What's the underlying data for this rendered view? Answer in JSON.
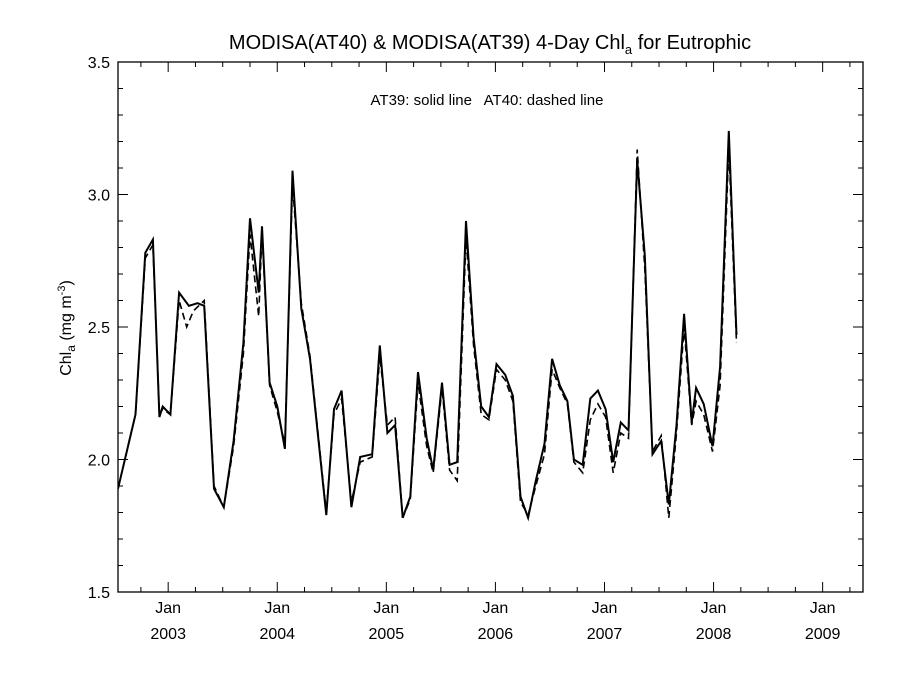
{
  "chart_data": {
    "type": "line",
    "title": {
      "main": "MODISA(AT40) & MODISA(AT39) 4-Day Chl",
      "sub": "a",
      "tail": " for Eutrophic"
    },
    "ylabel": {
      "main": "Chl",
      "sub": "a",
      "unit": " (mg m",
      "sup": "-3",
      "close": ")"
    },
    "annotation": "AT39: solid line   AT40: dashed line",
    "xlim": [
      2002.54,
      2009.37
    ],
    "ylim": [
      1.5,
      3.5
    ],
    "yticks": [
      "1.5",
      "2.0",
      "2.5",
      "3.0",
      "3.5"
    ],
    "xticks": [
      {
        "x": 2003.0,
        "month": "Jan",
        "year": "2003"
      },
      {
        "x": 2004.0,
        "month": "Jan",
        "year": "2004"
      },
      {
        "x": 2005.0,
        "month": "Jan",
        "year": "2005"
      },
      {
        "x": 2006.0,
        "month": "Jan",
        "year": "2006"
      },
      {
        "x": 2007.0,
        "month": "Jan",
        "year": "2007"
      },
      {
        "x": 2008.0,
        "month": "Jan",
        "year": "2008"
      },
      {
        "x": 2009.0,
        "month": "Jan",
        "year": "2009"
      }
    ],
    "series": [
      {
        "name": "AT39",
        "style": "solid",
        "color": "#000000",
        "points": [
          [
            2002.54,
            1.89
          ],
          [
            2002.7,
            2.17
          ],
          [
            2002.79,
            2.78
          ],
          [
            2002.86,
            2.83
          ],
          [
            2002.92,
            2.16
          ],
          [
            2002.95,
            2.2
          ],
          [
            2003.02,
            2.17
          ],
          [
            2003.1,
            2.63
          ],
          [
            2003.19,
            2.58
          ],
          [
            2003.27,
            2.59
          ],
          [
            2003.33,
            2.58
          ],
          [
            2003.42,
            1.89
          ],
          [
            2003.51,
            1.82
          ],
          [
            2003.6,
            2.07
          ],
          [
            2003.69,
            2.44
          ],
          [
            2003.75,
            2.91
          ],
          [
            2003.83,
            2.63
          ],
          [
            2003.86,
            2.88
          ],
          [
            2003.93,
            2.29
          ],
          [
            2004.0,
            2.2
          ],
          [
            2004.07,
            2.04
          ],
          [
            2004.14,
            3.09
          ],
          [
            2004.22,
            2.57
          ],
          [
            2004.3,
            2.38
          ],
          [
            2004.45,
            1.79
          ],
          [
            2004.52,
            2.19
          ],
          [
            2004.59,
            2.26
          ],
          [
            2004.68,
            1.82
          ],
          [
            2004.76,
            2.01
          ],
          [
            2004.87,
            2.02
          ],
          [
            2004.94,
            2.43
          ],
          [
            2005.01,
            2.1
          ],
          [
            2005.08,
            2.13
          ],
          [
            2005.15,
            1.78
          ],
          [
            2005.22,
            1.86
          ],
          [
            2005.29,
            2.33
          ],
          [
            2005.37,
            2.08
          ],
          [
            2005.43,
            1.96
          ],
          [
            2005.51,
            2.29
          ],
          [
            2005.58,
            1.98
          ],
          [
            2005.65,
            1.99
          ],
          [
            2005.73,
            2.9
          ],
          [
            2005.8,
            2.46
          ],
          [
            2005.87,
            2.2
          ],
          [
            2005.94,
            2.16
          ],
          [
            2006.01,
            2.36
          ],
          [
            2006.09,
            2.32
          ],
          [
            2006.16,
            2.24
          ],
          [
            2006.23,
            1.86
          ],
          [
            2006.3,
            1.78
          ],
          [
            2006.37,
            1.92
          ],
          [
            2006.45,
            2.06
          ],
          [
            2006.52,
            2.38
          ],
          [
            2006.59,
            2.28
          ],
          [
            2006.66,
            2.22
          ],
          [
            2006.72,
            2.0
          ],
          [
            2006.8,
            1.98
          ],
          [
            2006.87,
            2.23
          ],
          [
            2006.94,
            2.26
          ],
          [
            2007.01,
            2.19
          ],
          [
            2007.08,
            1.99
          ],
          [
            2007.15,
            2.14
          ],
          [
            2007.22,
            2.11
          ],
          [
            2007.3,
            3.13
          ],
          [
            2007.37,
            2.77
          ],
          [
            2007.44,
            2.02
          ],
          [
            2007.52,
            2.07
          ],
          [
            2007.59,
            1.83
          ],
          [
            2007.66,
            2.13
          ],
          [
            2007.73,
            2.55
          ],
          [
            2007.8,
            2.14
          ],
          [
            2007.84,
            2.27
          ],
          [
            2007.91,
            2.21
          ],
          [
            2007.99,
            2.05
          ],
          [
            2008.06,
            2.35
          ],
          [
            2008.14,
            3.24
          ],
          [
            2008.21,
            2.47
          ]
        ]
      },
      {
        "name": "AT40",
        "style": "dashed",
        "color": "#000000",
        "points": [
          [
            2002.54,
            1.89
          ],
          [
            2002.7,
            2.17
          ],
          [
            2002.79,
            2.76
          ],
          [
            2002.86,
            2.81
          ],
          [
            2002.92,
            2.17
          ],
          [
            2002.95,
            2.19
          ],
          [
            2003.02,
            2.17
          ],
          [
            2003.1,
            2.6
          ],
          [
            2003.17,
            2.5
          ],
          [
            2003.23,
            2.56
          ],
          [
            2003.33,
            2.6
          ],
          [
            2003.42,
            1.9
          ],
          [
            2003.51,
            1.82
          ],
          [
            2003.6,
            2.05
          ],
          [
            2003.69,
            2.4
          ],
          [
            2003.75,
            2.85
          ],
          [
            2003.83,
            2.54
          ],
          [
            2003.86,
            2.86
          ],
          [
            2003.93,
            2.28
          ],
          [
            2004.0,
            2.18
          ],
          [
            2004.07,
            2.06
          ],
          [
            2004.14,
            3.04
          ],
          [
            2004.22,
            2.59
          ],
          [
            2004.3,
            2.39
          ],
          [
            2004.45,
            1.8
          ],
          [
            2004.52,
            2.17
          ],
          [
            2004.59,
            2.23
          ],
          [
            2004.68,
            1.84
          ],
          [
            2004.76,
            1.99
          ],
          [
            2004.87,
            2.01
          ],
          [
            2004.94,
            2.39
          ],
          [
            2005.01,
            2.13
          ],
          [
            2005.08,
            2.16
          ],
          [
            2005.15,
            1.78
          ],
          [
            2005.22,
            1.85
          ],
          [
            2005.29,
            2.29
          ],
          [
            2005.37,
            2.05
          ],
          [
            2005.43,
            1.95
          ],
          [
            2005.51,
            2.27
          ],
          [
            2005.58,
            1.96
          ],
          [
            2005.65,
            1.92
          ],
          [
            2005.73,
            2.84
          ],
          [
            2005.8,
            2.43
          ],
          [
            2005.87,
            2.17
          ],
          [
            2005.94,
            2.15
          ],
          [
            2006.01,
            2.34
          ],
          [
            2006.09,
            2.3
          ],
          [
            2006.16,
            2.22
          ],
          [
            2006.23,
            1.84
          ],
          [
            2006.3,
            1.79
          ],
          [
            2006.37,
            1.9
          ],
          [
            2006.45,
            2.02
          ],
          [
            2006.52,
            2.34
          ],
          [
            2006.59,
            2.27
          ],
          [
            2006.66,
            2.21
          ],
          [
            2006.72,
            1.99
          ],
          [
            2006.8,
            1.95
          ],
          [
            2006.87,
            2.15
          ],
          [
            2006.94,
            2.21
          ],
          [
            2007.01,
            2.16
          ],
          [
            2007.08,
            1.95
          ],
          [
            2007.15,
            2.1
          ],
          [
            2007.22,
            2.08
          ],
          [
            2007.3,
            3.17
          ],
          [
            2007.37,
            2.72
          ],
          [
            2007.44,
            2.03
          ],
          [
            2007.52,
            2.09
          ],
          [
            2007.59,
            1.78
          ],
          [
            2007.66,
            2.1
          ],
          [
            2007.73,
            2.5
          ],
          [
            2007.8,
            2.13
          ],
          [
            2007.84,
            2.22
          ],
          [
            2007.91,
            2.17
          ],
          [
            2007.99,
            2.03
          ],
          [
            2008.06,
            2.28
          ],
          [
            2008.14,
            3.18
          ],
          [
            2008.21,
            2.44
          ]
        ]
      }
    ]
  }
}
